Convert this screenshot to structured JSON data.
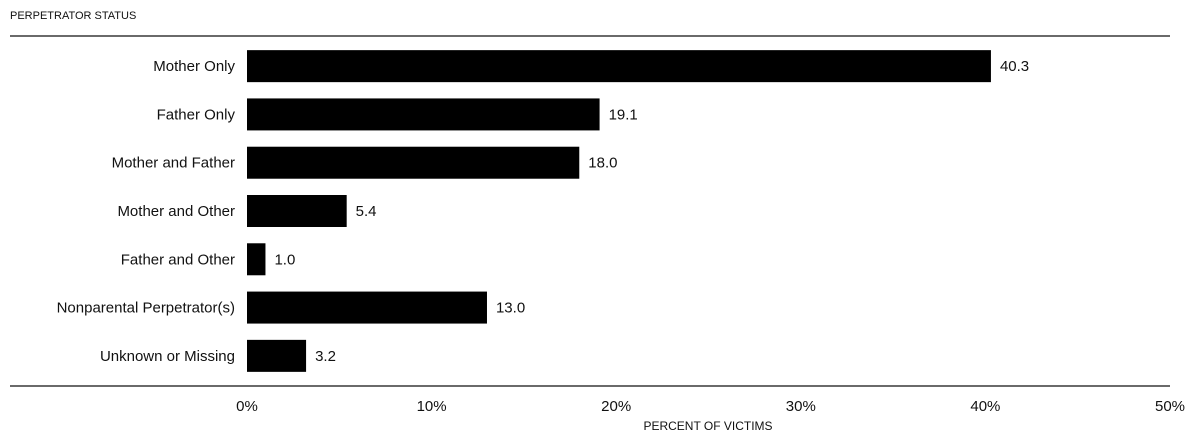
{
  "chart_data": {
    "type": "bar",
    "orientation": "horizontal",
    "title": "PERPETRATOR STATUS",
    "xlabel": "PERCENT OF VICTIMS",
    "categories": [
      "Mother Only",
      "Father Only",
      "Mother and Father",
      "Mother and Other",
      "Father and Other",
      "Nonparental Perpetrator(s)",
      "Unknown or Missing"
    ],
    "values": [
      40.3,
      19.1,
      18.0,
      5.4,
      1.0,
      13.0,
      3.2
    ],
    "value_labels": [
      "40.3",
      "19.1",
      "18.0",
      "5.4",
      "1.0",
      "13.0",
      "3.2"
    ],
    "color": "#000000",
    "xlim": [
      0,
      50
    ],
    "xticks": [
      {
        "value": 0,
        "label": "0%"
      },
      {
        "value": 10,
        "label": "10%"
      },
      {
        "value": 20,
        "label": "20%"
      },
      {
        "value": 30,
        "label": "30%"
      },
      {
        "value": 40,
        "label": "40%"
      },
      {
        "value": 50,
        "label": "50%"
      }
    ],
    "grid": false
  }
}
